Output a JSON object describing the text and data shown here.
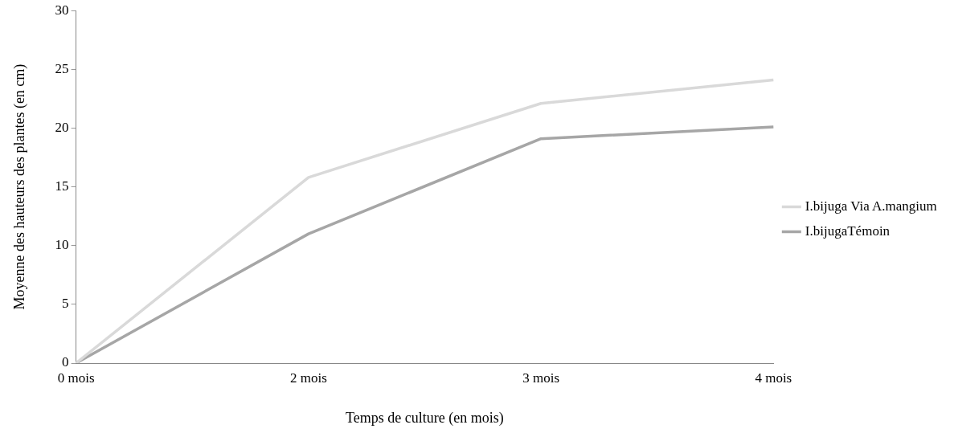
{
  "chart_data": {
    "type": "line",
    "xlabel": "Temps de culture (en mois)",
    "ylabel": "Moyenne des hauteurs des plantes (en cm)",
    "categories": [
      "0 mois",
      "2 mois",
      "3 mois",
      "4 mois"
    ],
    "series": [
      {
        "name": "I.bijuga Via A.mangium",
        "color": "#d9d9d9",
        "values": [
          0,
          15.8,
          22.1,
          24.1
        ]
      },
      {
        "name": "I.bijugaTémoin",
        "color": "#a6a6a6",
        "values": [
          0,
          11,
          19.1,
          20.1
        ]
      }
    ],
    "ylim": [
      0,
      30
    ],
    "yticks": [
      0,
      5,
      10,
      15,
      20,
      25,
      30
    ],
    "grid": false,
    "legend": "right",
    "marker": "none",
    "line_style": "solid"
  }
}
